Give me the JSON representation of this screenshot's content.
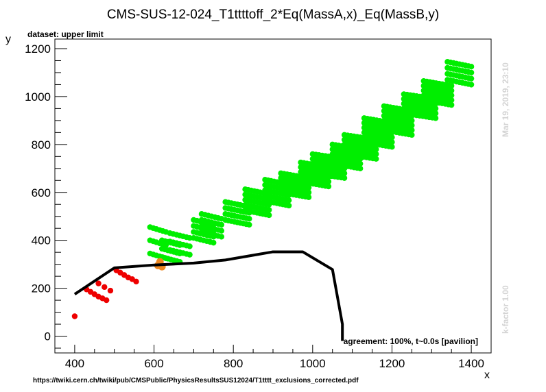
{
  "chart_data": {
    "type": "scatter",
    "title": "CMS-SUS-12-024_T1ttttoff_2*Eq(MassA,x)_Eq(MassB,y)",
    "subtitle": "dataset: upper limit",
    "xlabel": "x",
    "ylabel": "y",
    "xlim": [
      350,
      1450
    ],
    "ylim": [
      -70,
      1240
    ],
    "xticks": [
      400,
      600,
      800,
      1000,
      1200,
      1400
    ],
    "yticks": [
      0,
      200,
      400,
      600,
      800,
      1000,
      1200
    ],
    "grid": false,
    "agreement_text": "agreement: 100%, t~0.0s [pavilion]",
    "timestamp_text": "Mar 19, 2019, 23:10",
    "kfactor_text": "k-factor 1.00",
    "source_text": "https://twiki.cern.ch/twiki/pub/CMSPublic/PhysicsResultsSUS12024/T1tttt_exclusions_corrected.pdf",
    "colors": {
      "allowed": "#00ee00",
      "excluded": "#ee0000",
      "border": "#ee8822",
      "exclusion_line": "#000000"
    },
    "series": [
      {
        "role": "exclusion_line",
        "x": [
          400,
          500,
          600,
          700,
          780,
          900,
          975,
          1050,
          1075,
          1075
        ],
        "y": [
          175,
          285,
          297,
          305,
          318,
          352,
          352,
          278,
          50,
          -20
        ]
      },
      {
        "role": "excluded",
        "x": [
          400,
          430,
          440,
          450,
          460,
          470,
          480,
          460,
          475,
          490,
          505,
          515,
          525,
          535,
          545,
          555
        ],
        "y": [
          83,
          195,
          185,
          175,
          165,
          158,
          150,
          220,
          205,
          190,
          275,
          265,
          255,
          245,
          238,
          228
        ]
      },
      {
        "role": "border",
        "x": [
          610,
          615,
          620
        ],
        "y": [
          295,
          310,
          290
        ]
      },
      {
        "role": "allowed",
        "bands": [
          {
            "x": [
              590,
              630
            ],
            "y0": 345,
            "dy": 55,
            "n": 3
          },
          {
            "x": [
              620,
              665
            ],
            "y0": 330,
            "dy": 35,
            "n": 3
          },
          {
            "x": [
              640,
              690
            ],
            "y0": 360,
            "dy": 35,
            "n": 3
          },
          {
            "x": [
              700,
              750
            ],
            "y0": 410,
            "dy": 25,
            "n": 4
          },
          {
            "x": [
              720,
              770
            ],
            "y0": 435,
            "dy": 25,
            "n": 4
          },
          {
            "x": [
              780,
              840
            ],
            "y0": 485,
            "dy": 25,
            "n": 4
          },
          {
            "x": [
              830,
              890
            ],
            "y0": 525,
            "dy": 22,
            "n": 5
          },
          {
            "x": [
              880,
              940
            ],
            "y0": 565,
            "dy": 22,
            "n": 5
          },
          {
            "x": [
              920,
              990
            ],
            "y0": 600,
            "dy": 20,
            "n": 5
          },
          {
            "x": [
              970,
              1040
            ],
            "y0": 645,
            "dy": 20,
            "n": 5
          },
          {
            "x": [
              1000,
              1080
            ],
            "y0": 680,
            "dy": 20,
            "n": 5
          },
          {
            "x": [
              1050,
              1120
            ],
            "y0": 720,
            "dy": 20,
            "n": 5
          },
          {
            "x": [
              1080,
              1160
            ],
            "y0": 760,
            "dy": 20,
            "n": 5
          },
          {
            "x": [
              1130,
              1200
            ],
            "y0": 810,
            "dy": 20,
            "n": 6
          },
          {
            "x": [
              1180,
              1250
            ],
            "y0": 860,
            "dy": 20,
            "n": 6
          },
          {
            "x": [
              1230,
              1310
            ],
            "y0": 930,
            "dy": 20,
            "n": 5
          },
          {
            "x": [
              1280,
              1350
            ],
            "y0": 985,
            "dy": 20,
            "n": 5
          },
          {
            "x": [
              1340,
              1400
            ],
            "y0": 1070,
            "dy": 25,
            "n": 4
          }
        ]
      }
    ]
  }
}
